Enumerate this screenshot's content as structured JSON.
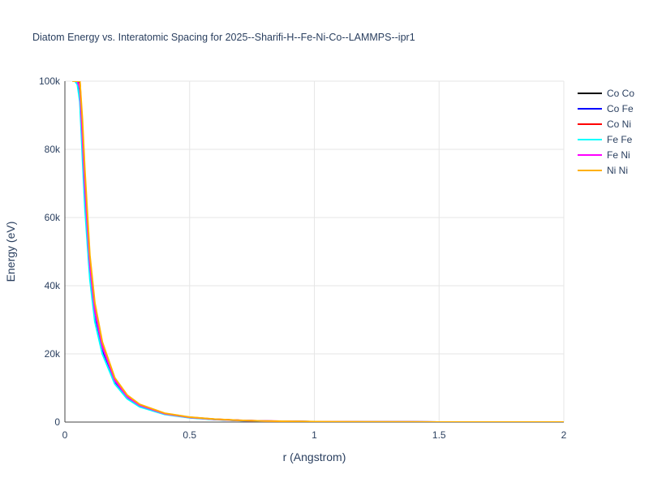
{
  "chart_data": {
    "type": "line",
    "title": "Diatom Energy vs. Interatomic Spacing for 2025--Sharifi-H--Fe-Ni-Co--LAMMPS--ipr1",
    "xlabel": "r (Angstrom)",
    "ylabel": "Energy (eV)",
    "xlim": [
      0,
      2
    ],
    "ylim": [
      0,
      100000
    ],
    "xticks": [
      0,
      0.5,
      1,
      1.5,
      2
    ],
    "xtick_labels": [
      "0",
      "0.5",
      "1",
      "1.5",
      "2"
    ],
    "yticks": [
      0,
      20000,
      40000,
      60000,
      80000,
      100000
    ],
    "ytick_labels": [
      "0",
      "20k",
      "40k",
      "60k",
      "80k",
      "100k"
    ],
    "grid": true,
    "legend_position": "top-right",
    "series": [
      {
        "name": "Co Co",
        "color": "#000000",
        "x": [
          0.04,
          0.05,
          0.06,
          0.07,
          0.08,
          0.1,
          0.12,
          0.15,
          0.2,
          0.25,
          0.3,
          0.4,
          0.5,
          0.6,
          0.7,
          0.8,
          1.0,
          1.2,
          1.5,
          2.0
        ],
        "y": [
          100000,
          100000,
          99000,
          83000,
          68000,
          45000,
          32000,
          21500,
          12000,
          7300,
          4800,
          2400,
          1350,
          800,
          480,
          280,
          110,
          40,
          8,
          0
        ]
      },
      {
        "name": "Co Fe",
        "color": "#0000ff",
        "x": [
          0.04,
          0.05,
          0.06,
          0.07,
          0.08,
          0.1,
          0.12,
          0.15,
          0.2,
          0.25,
          0.3,
          0.4,
          0.5,
          0.6,
          0.7,
          0.8,
          1.0,
          1.2,
          1.5,
          2.0
        ],
        "y": [
          100000,
          100000,
          97000,
          81000,
          66000,
          44000,
          31000,
          21000,
          11700,
          7100,
          4650,
          2350,
          1300,
          780,
          470,
          270,
          105,
          38,
          7,
          0
        ]
      },
      {
        "name": "Co Ni",
        "color": "#ff0000",
        "x": [
          0.05,
          0.06,
          0.07,
          0.08,
          0.1,
          0.12,
          0.15,
          0.2,
          0.25,
          0.3,
          0.4,
          0.5,
          0.6,
          0.7,
          0.8,
          1.0,
          1.2,
          1.5,
          2.0
        ],
        "y": [
          100000,
          100000,
          86000,
          71000,
          47000,
          33500,
          22500,
          12500,
          7600,
          5000,
          2500,
          1400,
          830,
          500,
          290,
          115,
          42,
          8,
          0
        ]
      },
      {
        "name": "Fe Fe",
        "color": "#00ffff",
        "x": [
          0.03,
          0.04,
          0.05,
          0.06,
          0.07,
          0.08,
          0.1,
          0.12,
          0.15,
          0.2,
          0.25,
          0.3,
          0.4,
          0.5,
          0.6,
          0.7,
          0.8,
          1.0,
          1.2,
          1.5,
          2.0
        ],
        "y": [
          100000,
          100000,
          99000,
          94000,
          78000,
          63000,
          42000,
          29500,
          20000,
          11200,
          6800,
          4450,
          2250,
          1250,
          750,
          450,
          260,
          100,
          36,
          7,
          0
        ]
      },
      {
        "name": "Fe Ni",
        "color": "#ff00ff",
        "x": [
          0.04,
          0.05,
          0.06,
          0.07,
          0.08,
          0.1,
          0.12,
          0.15,
          0.2,
          0.25,
          0.3,
          0.4,
          0.5,
          0.6,
          0.7,
          0.8,
          1.0,
          1.2,
          1.5,
          2.0
        ],
        "y": [
          100000,
          100000,
          98000,
          84000,
          69000,
          46000,
          32500,
          22000,
          12200,
          7400,
          4900,
          2450,
          1370,
          810,
          490,
          285,
          112,
          41,
          8,
          0
        ]
      },
      {
        "name": "Ni Ni",
        "color": "#ffb000",
        "x": [
          0.03,
          0.04,
          0.05,
          0.06,
          0.07,
          0.08,
          0.1,
          0.12,
          0.15,
          0.2,
          0.25,
          0.3,
          0.4,
          0.5,
          0.6,
          0.7,
          0.8,
          1.0,
          1.2,
          1.5,
          2.0
        ],
        "y": [
          100000,
          100000,
          100000,
          100000,
          89000,
          74000,
          49000,
          35000,
          23500,
          13000,
          7900,
          5200,
          2600,
          1450,
          870,
          520,
          300,
          120,
          45,
          9,
          0
        ]
      }
    ]
  }
}
